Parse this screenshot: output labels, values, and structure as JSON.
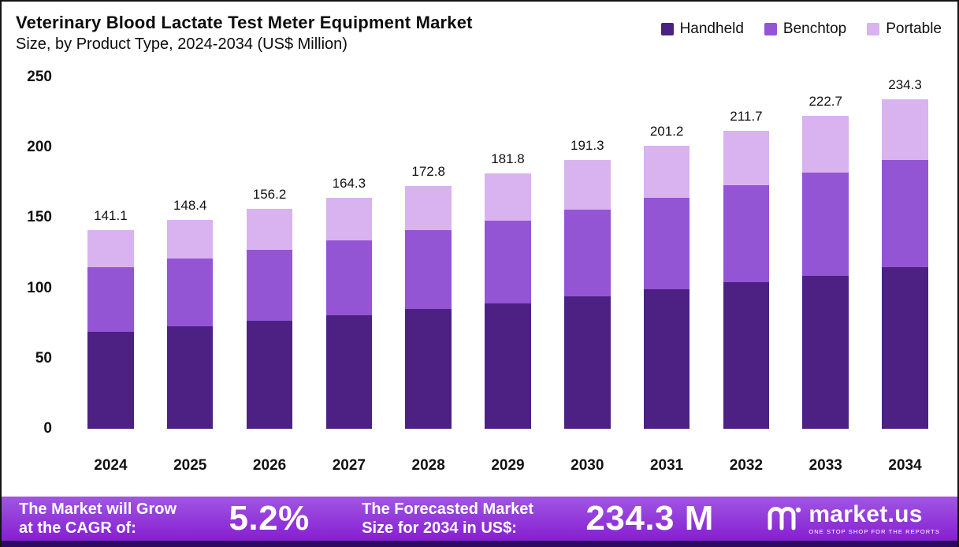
{
  "header": {
    "title_bold": "Veterinary Blood Lactate Test Meter Equipment Market",
    "title_rest": "Size, by Product Type, 2024-2034 (US$ Million)"
  },
  "legend": [
    {
      "label": "Handheld",
      "color": "#4c2183"
    },
    {
      "label": "Benchtop",
      "color": "#9355d4"
    },
    {
      "label": "Portable",
      "color": "#d9b2f0"
    }
  ],
  "colors": {
    "handheld": "#4c2183",
    "benchtop": "#9355d4",
    "portable": "#d9b2f0",
    "banner_top": "#a057e2",
    "banner_bottom": "#861fd2",
    "strip": "#2f0a63"
  },
  "chart_data": {
    "type": "bar",
    "stacked": true,
    "title": "Veterinary Blood Lactate Test Meter Equipment Market Size, by Product Type, 2024-2034 (US$ Million)",
    "categories": [
      "2024",
      "2025",
      "2026",
      "2027",
      "2028",
      "2029",
      "2030",
      "2031",
      "2032",
      "2033",
      "2034"
    ],
    "series": [
      {
        "name": "Handheld",
        "color": "#4c2183",
        "values": [
          69,
          73,
          77,
          81,
          85,
          89,
          94,
          99,
          104,
          109,
          115
        ]
      },
      {
        "name": "Benchtop",
        "color": "#9355d4",
        "values": [
          46,
          48,
          50,
          53,
          56,
          59,
          62,
          65,
          69,
          73,
          76
        ]
      },
      {
        "name": "Portable",
        "color": "#d9b2f0",
        "values": [
          26.1,
          27.4,
          29.2,
          30.3,
          31.8,
          33.8,
          35.3,
          37.2,
          38.7,
          40.7,
          43.3
        ]
      }
    ],
    "totals": [
      141.1,
      148.4,
      156.2,
      164.3,
      172.8,
      181.8,
      191.3,
      201.2,
      211.7,
      222.7,
      234.3
    ],
    "xlabel": "",
    "ylabel": "",
    "ylim": [
      0,
      250
    ],
    "yticks": [
      0,
      50,
      100,
      150,
      200,
      250
    ],
    "grid": false,
    "legend_position": "top-right"
  },
  "footer": {
    "cagr_label": "The Market will Grow\nat the CAGR of:",
    "cagr_value": "5.2%",
    "forecast_label": "The Forecasted Market\nSize for 2034 in US$:",
    "forecast_value": "234.3 M",
    "brand": "market.us",
    "brand_tagline": "ONE STOP SHOP FOR THE REPORTS"
  }
}
